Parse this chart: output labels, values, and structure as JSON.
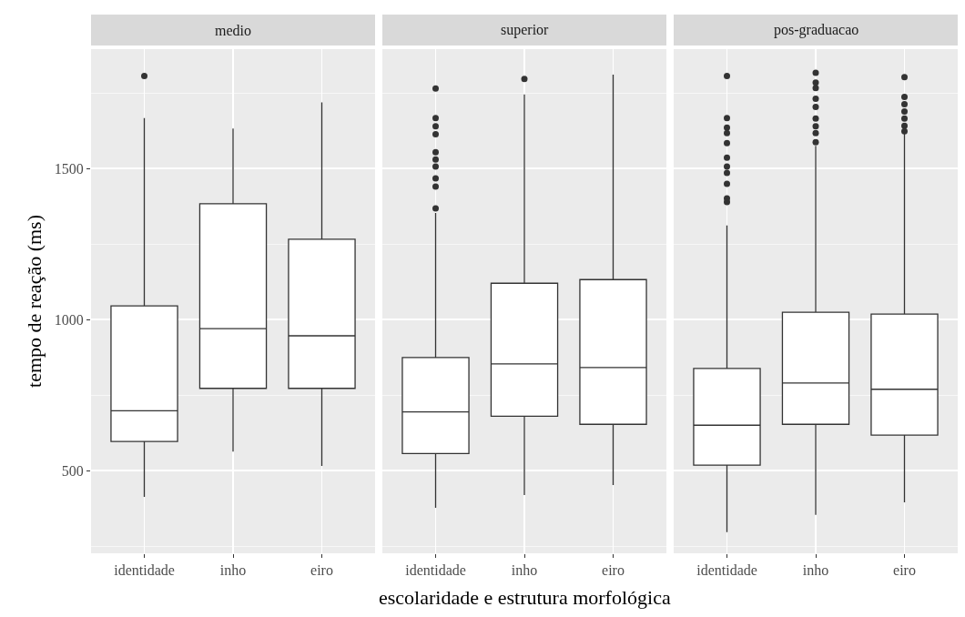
{
  "chart_data": [
    {
      "type": "box",
      "title": "medio",
      "ylabel": "tempo de reação (ms)",
      "categories": [
        "identidade",
        "inho",
        "eiro"
      ],
      "ylim": [
        226,
        1895
      ],
      "yticks": [
        500,
        1000,
        1500
      ],
      "grid": true,
      "boxes": [
        {
          "low": 413,
          "q1": 596,
          "median": 698,
          "q3": 1045,
          "high": 1667,
          "outliers": [
            1806
          ]
        },
        {
          "low": 563,
          "q1": 772,
          "median": 970,
          "q3": 1383,
          "high": 1632
        },
        {
          "low": 515,
          "q1": 772,
          "median": 946,
          "q3": 1266,
          "high": 1719
        }
      ]
    },
    {
      "type": "box",
      "title": "superior",
      "xlabel": "escolaridade e estrutura morfológica",
      "categories": [
        "identidade",
        "inho",
        "eiro"
      ],
      "ylim": [
        226,
        1895
      ],
      "yticks": [
        500,
        1000,
        1500
      ],
      "grid": true,
      "tick_labels": "x",
      "boxes": [
        {
          "low": 377,
          "q1": 556,
          "median": 694,
          "q3": 874,
          "high": 1353,
          "outliers": [
            1765,
            1667,
            1640,
            1613,
            1554,
            1530,
            1506,
            1467,
            1440,
            1368
          ]
        },
        {
          "low": 419,
          "q1": 680,
          "median": 853,
          "q3": 1120,
          "high": 1745,
          "outliers": [
            1796
          ]
        },
        {
          "low": 452,
          "q1": 653,
          "median": 841,
          "q3": 1132,
          "high": 1811
        }
      ]
    },
    {
      "type": "box",
      "title": "pos-graduacao",
      "categories": [
        "identidade",
        "inho",
        "eiro"
      ],
      "ylim": [
        226,
        1895
      ],
      "yticks": [
        500,
        1000,
        1500
      ],
      "grid": true,
      "tick_labels": "x",
      "boxes": [
        {
          "low": 296,
          "q1": 518,
          "median": 650,
          "q3": 838,
          "high": 1311,
          "outliers": [
            1806,
            1667,
            1635,
            1617,
            1584,
            1536,
            1506,
            1485,
            1449,
            1401,
            1389
          ]
        },
        {
          "low": 353,
          "q1": 653,
          "median": 790,
          "q3": 1024,
          "high": 1575,
          "outliers": [
            1817,
            1784,
            1766,
            1731,
            1704,
            1665,
            1640,
            1617,
            1587
          ]
        },
        {
          "low": 395,
          "q1": 617,
          "median": 769,
          "q3": 1018,
          "high": 1617,
          "outliers": [
            1802,
            1737,
            1713,
            1689,
            1665,
            1641,
            1623
          ]
        }
      ]
    }
  ]
}
